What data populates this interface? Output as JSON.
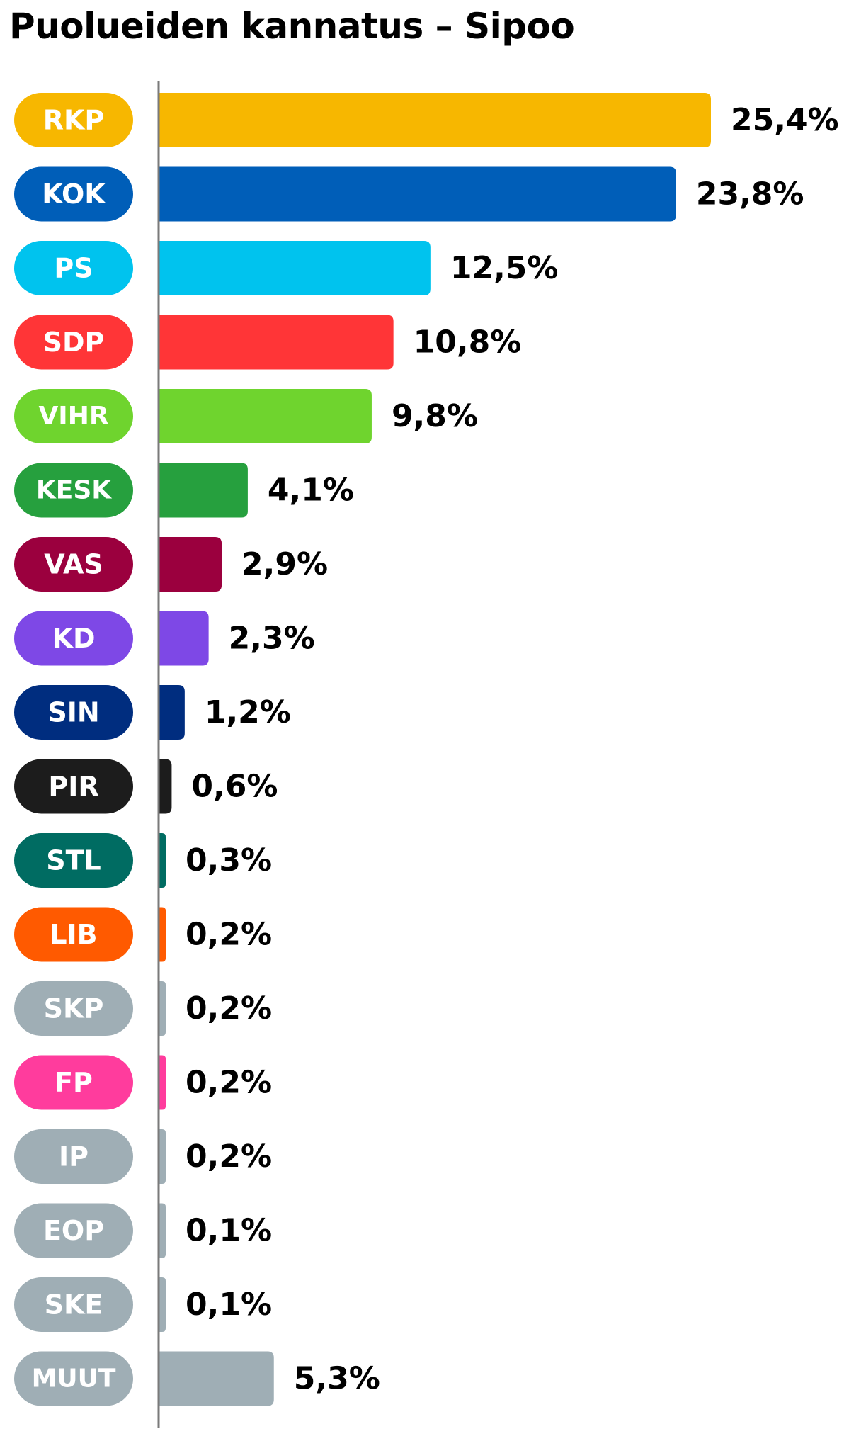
{
  "chart_data": {
    "type": "bar",
    "orientation": "horizontal",
    "title": "Puolueiden kannatus – Sipoo",
    "xlabel": "",
    "ylabel": "",
    "xlim": [
      0,
      25.4
    ],
    "grid": false,
    "legend": "none",
    "categories": [
      "RKP",
      "KOK",
      "PS",
      "SDP",
      "VIHR",
      "KESK",
      "VAS",
      "KD",
      "SIN",
      "PIR",
      "STL",
      "LIB",
      "SKP",
      "FP",
      "IP",
      "EOP",
      "SKE",
      "MUUT"
    ],
    "values": [
      25.4,
      23.8,
      12.5,
      10.8,
      9.8,
      4.1,
      2.9,
      2.3,
      1.2,
      0.6,
      0.3,
      0.2,
      0.2,
      0.2,
      0.2,
      0.1,
      0.1,
      5.3
    ],
    "value_labels": [
      "25,4%",
      "23,8%",
      "12,5%",
      "10,8%",
      "9,8%",
      "4,1%",
      "2,9%",
      "2,3%",
      "1,2%",
      "0,6%",
      "0,3%",
      "0,2%",
      "0,2%",
      "0,2%",
      "0,2%",
      "0,1%",
      "0,1%",
      "5,3%"
    ],
    "colors": [
      "#f7b700",
      "#005eb8",
      "#00c3ee",
      "#ff3537",
      "#6fd42e",
      "#26a03e",
      "#9b003e",
      "#7e48e6",
      "#002d7f",
      "#1c1c1c",
      "#006c62",
      "#ff5a00",
      "#9faeb5",
      "#ff3c9d",
      "#9faeb5",
      "#9faeb5",
      "#9faeb5",
      "#9faeb5"
    ]
  }
}
